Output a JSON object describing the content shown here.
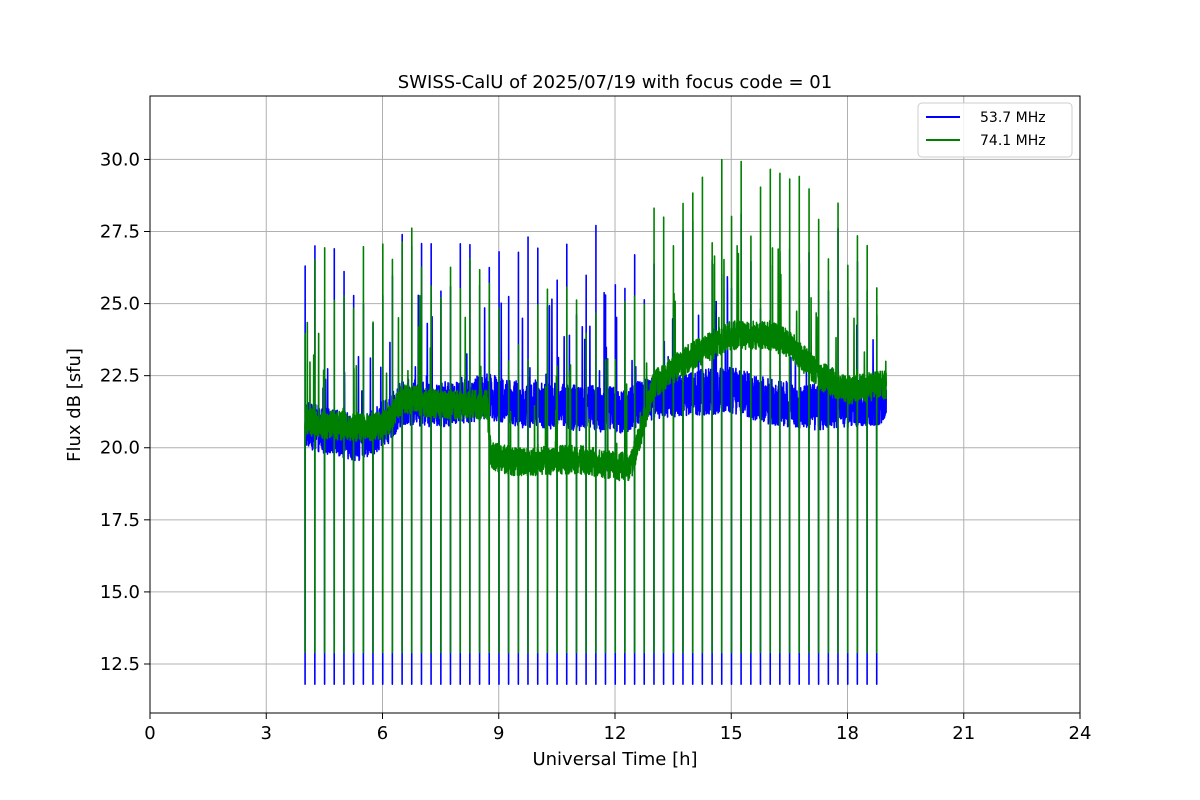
{
  "chart_data": {
    "type": "line",
    "title": "SWISS-CalU of 2025/07/19 with focus code = 01",
    "xlabel": "Universal Time [h]",
    "ylabel": "Flux dB [sfu]",
    "xlim": [
      0,
      24
    ],
    "ylim": [
      10.8,
      32.2
    ],
    "x_ticks": [
      0,
      3,
      6,
      9,
      12,
      15,
      18,
      21,
      24
    ],
    "x_tick_labels": [
      "0",
      "3",
      "6",
      "9",
      "12",
      "15",
      "18",
      "21",
      "24"
    ],
    "y_ticks": [
      12.5,
      15.0,
      17.5,
      20.0,
      22.5,
      25.0,
      27.5,
      30.0
    ],
    "y_tick_labels": [
      "12.5",
      "15.0",
      "17.5",
      "20.0",
      "22.5",
      "25.0",
      "27.5",
      "30.0"
    ],
    "grid": true,
    "legend_position": "top-right",
    "time_range": [
      4.0,
      19.0
    ],
    "calibration_dip_interval_h": 0.25,
    "series": [
      {
        "name": "53.7 MHz",
        "color": "#0000ff",
        "calibration_low": 11.8,
        "baseline": [
          [
            4.0,
            20.8
          ],
          [
            4.5,
            20.6
          ],
          [
            5.5,
            20.3
          ],
          [
            6.2,
            21.0
          ],
          [
            6.5,
            21.6
          ],
          [
            7.5,
            21.5
          ],
          [
            8.0,
            21.6
          ],
          [
            8.7,
            21.8
          ],
          [
            9.5,
            21.5
          ],
          [
            11.0,
            21.4
          ],
          [
            12.2,
            21.3
          ],
          [
            12.6,
            21.5
          ],
          [
            13.0,
            21.8
          ],
          [
            14.0,
            21.9
          ],
          [
            15.0,
            22.0
          ],
          [
            16.0,
            21.6
          ],
          [
            17.0,
            21.4
          ],
          [
            18.0,
            21.5
          ],
          [
            19.0,
            21.6
          ]
        ],
        "noise": 0.8
      },
      {
        "name": "74.1 MHz",
        "color": "#008000",
        "calibration_low": 12.9,
        "baseline": [
          [
            4.0,
            20.9
          ],
          [
            4.5,
            20.8
          ],
          [
            5.5,
            20.7
          ],
          [
            6.1,
            20.8
          ],
          [
            6.5,
            21.7
          ],
          [
            7.5,
            21.5
          ],
          [
            8.7,
            21.5
          ],
          [
            8.8,
            19.7
          ],
          [
            9.5,
            19.5
          ],
          [
            11.0,
            19.6
          ],
          [
            12.4,
            19.3
          ],
          [
            12.8,
            21.2
          ],
          [
            13.0,
            22.2
          ],
          [
            14.0,
            23.2
          ],
          [
            15.0,
            23.9
          ],
          [
            16.0,
            23.9
          ],
          [
            16.5,
            23.6
          ],
          [
            17.3,
            22.5
          ],
          [
            18.0,
            22.0
          ],
          [
            19.0,
            22.2
          ]
        ],
        "noise": 0.5
      }
    ]
  }
}
